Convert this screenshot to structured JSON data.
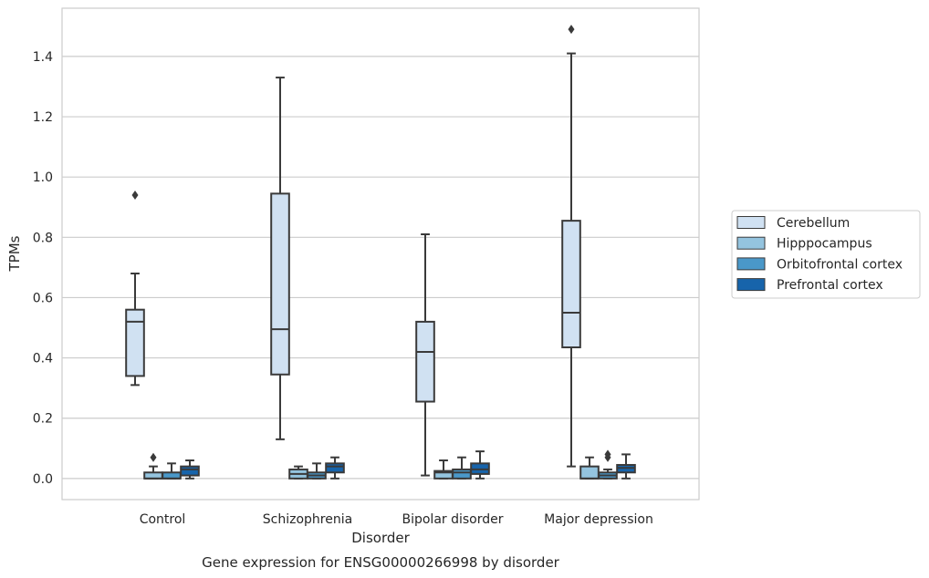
{
  "caption": "Gene expression for ENSG00000266998 by disorder",
  "chart_data": {
    "type": "box",
    "xlabel": "Disorder",
    "ylabel": "TPMs",
    "ylim": [
      -0.07,
      1.56
    ],
    "yticks": [
      0.0,
      0.2,
      0.4,
      0.6,
      0.8,
      1.0,
      1.2,
      1.4
    ],
    "ytick_labels": [
      "0.0",
      "0.2",
      "0.4",
      "0.6",
      "0.8",
      "1.0",
      "1.2",
      "1.4"
    ],
    "grid": "horizontal",
    "legend_position": "right, outside plot",
    "categories": [
      "Control",
      "Schizophrenia",
      "Bipolar disorder",
      "Major depression"
    ],
    "series": [
      {
        "name": "Cerebellum",
        "color": "#d0e1f2",
        "boxes": [
          {
            "min": 0.31,
            "q1": 0.34,
            "median": 0.52,
            "q3": 0.56,
            "max": 0.68,
            "outliers": [
              0.94
            ]
          },
          {
            "min": 0.13,
            "q1": 0.345,
            "median": 0.495,
            "q3": 0.945,
            "max": 1.33,
            "outliers": []
          },
          {
            "min": 0.01,
            "q1": 0.255,
            "median": 0.42,
            "q3": 0.52,
            "max": 0.81,
            "outliers": []
          },
          {
            "min": 0.04,
            "q1": 0.435,
            "median": 0.55,
            "q3": 0.855,
            "max": 1.41,
            "outliers": [
              1.49
            ]
          }
        ]
      },
      {
        "name": "Hipppocampus",
        "color": "#94c4df",
        "boxes": [
          {
            "min": 0.0,
            "q1": 0.0,
            "median": 0.0,
            "q3": 0.02,
            "max": 0.04,
            "outliers": [
              0.07
            ]
          },
          {
            "min": 0.0,
            "q1": 0.0,
            "median": 0.015,
            "q3": 0.03,
            "max": 0.04,
            "outliers": []
          },
          {
            "min": 0.0,
            "q1": 0.0,
            "median": 0.02,
            "q3": 0.025,
            "max": 0.06,
            "outliers": []
          },
          {
            "min": 0.0,
            "q1": 0.0,
            "median": 0.0,
            "q3": 0.04,
            "max": 0.07,
            "outliers": []
          }
        ]
      },
      {
        "name": "Orbitofrontal cortex",
        "color": "#4a98c9",
        "boxes": [
          {
            "min": 0.0,
            "q1": 0.0,
            "median": 0.0,
            "q3": 0.02,
            "max": 0.05,
            "outliers": []
          },
          {
            "min": 0.0,
            "q1": 0.0,
            "median": 0.01,
            "q3": 0.02,
            "max": 0.05,
            "outliers": []
          },
          {
            "min": 0.0,
            "q1": 0.0,
            "median": 0.02,
            "q3": 0.03,
            "max": 0.07,
            "outliers": []
          },
          {
            "min": 0.0,
            "q1": 0.0,
            "median": 0.01,
            "q3": 0.02,
            "max": 0.03,
            "outliers": [
              0.07,
              0.08
            ]
          }
        ]
      },
      {
        "name": "Prefrontal cortex",
        "color": "#1764ab",
        "boxes": [
          {
            "min": 0.0,
            "q1": 0.01,
            "median": 0.03,
            "q3": 0.04,
            "max": 0.06,
            "outliers": []
          },
          {
            "min": 0.0,
            "q1": 0.02,
            "median": 0.04,
            "q3": 0.05,
            "max": 0.07,
            "outliers": []
          },
          {
            "min": 0.0,
            "q1": 0.015,
            "median": 0.03,
            "q3": 0.05,
            "max": 0.09,
            "outliers": []
          },
          {
            "min": 0.0,
            "q1": 0.02,
            "median": 0.035,
            "q3": 0.045,
            "max": 0.08,
            "outliers": []
          }
        ]
      }
    ]
  }
}
